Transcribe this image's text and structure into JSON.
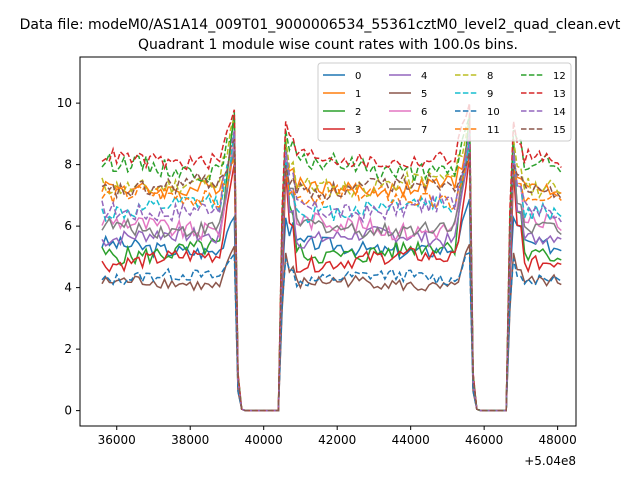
{
  "chart_data": {
    "type": "line",
    "suptitle": "Data file: modeM0/AS1A14_009T01_9000006534_55361cztM0_level2_quad_clean.evt",
    "title": "Quadrant 1 module wise count rates with 100.0s bins.",
    "xlabel": "",
    "ylabel": "",
    "x_offset_label": "+5.04e8",
    "x_offset": 504000000,
    "xlim": [
      35000,
      48500
    ],
    "ylim": [
      -0.5,
      11.5
    ],
    "xticks": [
      36000,
      38000,
      40000,
      42000,
      44000,
      46000,
      48000
    ],
    "yticks": [
      0,
      2,
      4,
      6,
      8,
      10
    ],
    "x_start": 35600,
    "x_end": 48100,
    "bin": 100,
    "segments": [
      {
        "x_from": 35600,
        "x_to": 39200,
        "state": "on"
      },
      {
        "x_from": 39300,
        "x_to": 39400,
        "state": "falling"
      },
      {
        "x_from": 39500,
        "x_to": 40400,
        "state": "zero"
      },
      {
        "x_from": 40500,
        "x_to": 40600,
        "state": "rising"
      },
      {
        "x_from": 40600,
        "x_to": 45600,
        "state": "on"
      },
      {
        "x_from": 45700,
        "x_to": 45800,
        "state": "falling"
      },
      {
        "x_from": 45800,
        "x_to": 46600,
        "state": "zero"
      },
      {
        "x_from": 46700,
        "x_to": 46800,
        "state": "rising"
      },
      {
        "x_from": 46800,
        "x_to": 48100,
        "state": "on"
      }
    ],
    "legend_placement": "upper-right, 4 columns",
    "series": [
      {
        "name": "0",
        "color": "#1f77b4",
        "dash": "solid",
        "level": 5.3,
        "noise": 0.25,
        "peak": 6.6
      },
      {
        "name": "1",
        "color": "#ff7f0e",
        "dash": "solid",
        "level": 7.3,
        "noise": 0.25,
        "peak": 8.6
      },
      {
        "name": "2",
        "color": "#2ca02c",
        "dash": "solid",
        "level": 5.2,
        "noise": 0.3,
        "peak": 9.3
      },
      {
        "name": "3",
        "color": "#d62728",
        "dash": "solid",
        "level": 4.9,
        "noise": 0.25,
        "peak": 8.2
      },
      {
        "name": "4",
        "color": "#9467bd",
        "dash": "solid",
        "level": 5.6,
        "noise": 0.25,
        "peak": 8.9
      },
      {
        "name": "5",
        "color": "#8c564b",
        "dash": "solid",
        "level": 4.1,
        "noise": 0.2,
        "peak": 5.4
      },
      {
        "name": "6",
        "color": "#e377c2",
        "dash": "solid",
        "level": 6.0,
        "noise": 0.3,
        "peak": 8.8
      },
      {
        "name": "7",
        "color": "#7f7f7f",
        "dash": "solid",
        "level": 6.0,
        "noise": 0.25,
        "peak": 8.5
      },
      {
        "name": "8",
        "color": "#bcbd22",
        "dash": "dashed",
        "level": 7.4,
        "noise": 0.3,
        "peak": 9.3
      },
      {
        "name": "9",
        "color": "#17becf",
        "dash": "dashed",
        "level": 6.6,
        "noise": 0.3,
        "peak": 8.7
      },
      {
        "name": "10",
        "color": "#1f77b4",
        "dash": "dashed",
        "level": 4.3,
        "noise": 0.2,
        "peak": 5.2
      },
      {
        "name": "11",
        "color": "#ff7f0e",
        "dash": "dashed",
        "level": 6.9,
        "noise": 0.3,
        "peak": 8.3
      },
      {
        "name": "12",
        "color": "#2ca02c",
        "dash": "dashed",
        "level": 7.9,
        "noise": 0.3,
        "peak": 9.6
      },
      {
        "name": "13",
        "color": "#d62728",
        "dash": "dashed",
        "level": 8.2,
        "noise": 0.25,
        "peak": 9.9
      },
      {
        "name": "14",
        "color": "#9467bd",
        "dash": "dashed",
        "level": 6.6,
        "noise": 0.3,
        "peak": 8.9
      },
      {
        "name": "15",
        "color": "#8c564b",
        "dash": "dashed",
        "level": 7.3,
        "noise": 0.3,
        "peak": 8.4
      }
    ]
  }
}
